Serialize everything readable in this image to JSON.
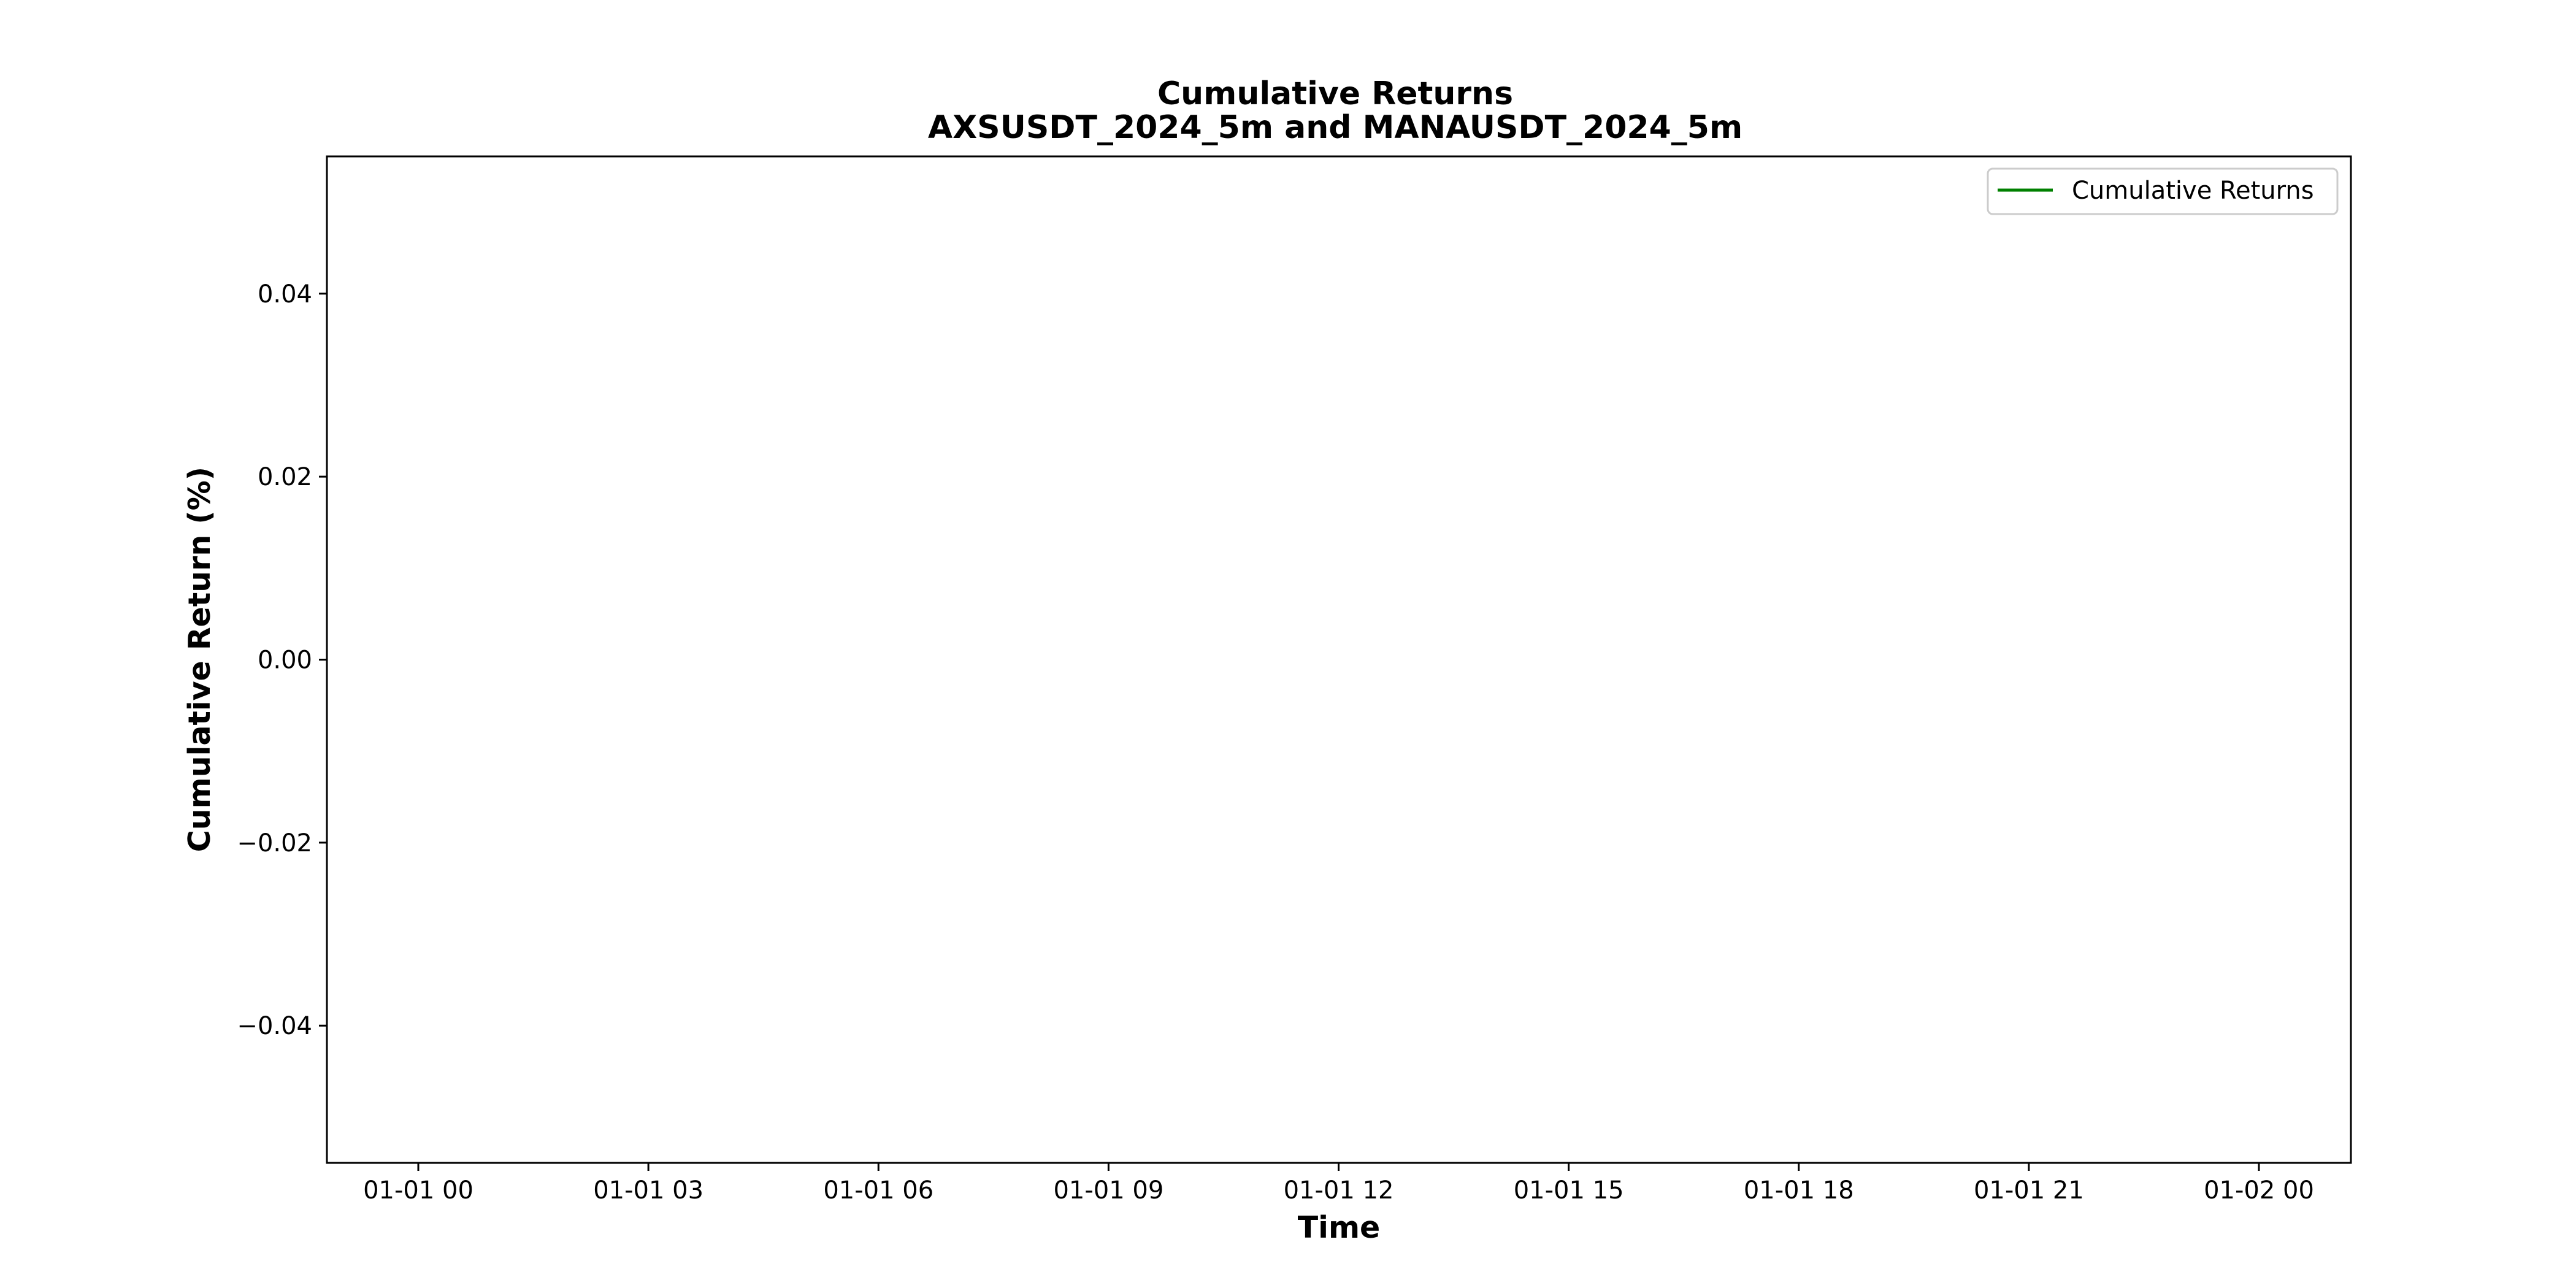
{
  "chart_data": {
    "type": "line",
    "title": "Cumulative Returns",
    "subtitle": "AXSUSDT_2024_5m and MANAUSDT_2024_5m",
    "xlabel": "Time",
    "ylabel": "Cumulative Return (%)",
    "x_tick_labels": [
      "01-01 00",
      "01-01 03",
      "01-01 06",
      "01-01 09",
      "01-01 12",
      "01-01 15",
      "01-01 18",
      "01-01 21",
      "01-02 00"
    ],
    "y_ticks": [
      0.04,
      0.02,
      0.0,
      -0.02,
      -0.04
    ],
    "y_tick_labels": [
      "0.04",
      "0.02",
      "0.00",
      "−0.02",
      "−0.04"
    ],
    "ylim": [
      -0.055,
      0.055
    ],
    "grid": false,
    "legend_position": "top-right",
    "series": [
      {
        "name": "Cumulative Returns",
        "color": "#008000",
        "x": [],
        "y": []
      }
    ]
  }
}
